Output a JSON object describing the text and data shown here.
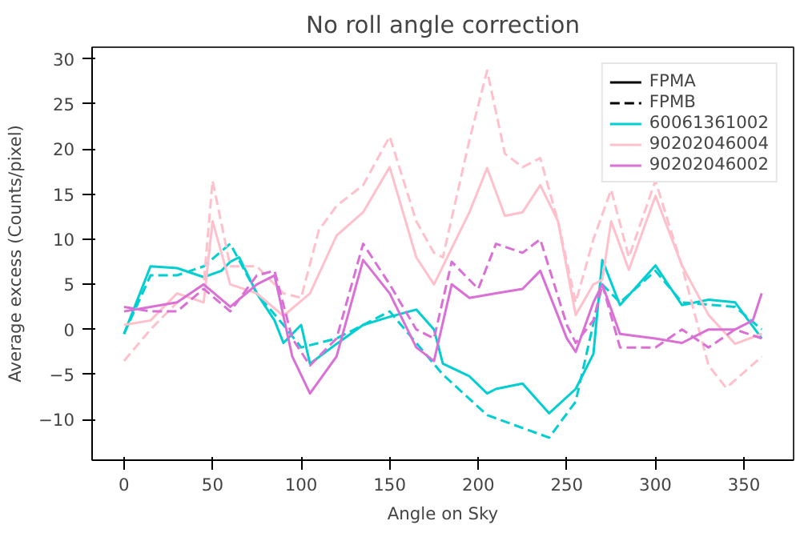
{
  "chart_data": {
    "type": "line",
    "title": "No roll angle correction",
    "xlabel": "Angle on Sky",
    "ylabel": "Average excess (Counts/pixel)",
    "xlim": [
      -18,
      378
    ],
    "ylim": [
      -14.5,
      31.3
    ],
    "xticks": [
      0,
      50,
      100,
      150,
      200,
      250,
      300,
      350
    ],
    "yticks": [
      -10,
      -5,
      0,
      5,
      10,
      15,
      20,
      25,
      30
    ],
    "grid": false,
    "legend": "top right",
    "marker": "none",
    "series": [
      {
        "name": "FPMA",
        "color": "#000000",
        "line_style": "solid"
      },
      {
        "name": "FPMB",
        "color": "#000000",
        "line_style": "dashed"
      },
      {
        "name": "60061361002",
        "color": "#00ced1",
        "line_style": "solid",
        "x": [
          0,
          15,
          30,
          45,
          55,
          60,
          65,
          75,
          85,
          90,
          100,
          105,
          120,
          135,
          150,
          165,
          175,
          180,
          195,
          205,
          210,
          225,
          240,
          255,
          265,
          270,
          280,
          300,
          315,
          330,
          345,
          360
        ],
        "values": [
          -0.5,
          7,
          6.8,
          5.8,
          6.5,
          7.5,
          8,
          4,
          1,
          -1.5,
          0.5,
          -3.8,
          -1.6,
          0.5,
          1.4,
          2.2,
          0,
          -3.8,
          -5.2,
          -7.1,
          -6.6,
          -6,
          -9.3,
          -6.6,
          -2.7,
          7.7,
          2.7,
          7.1,
          2.7,
          3.3,
          3,
          -1
        ]
      },
      {
        "color": "#00ced1",
        "line_style": "dashed",
        "x": [
          0,
          15,
          30,
          45,
          60,
          75,
          90,
          100,
          120,
          150,
          180,
          205,
          240,
          255,
          270,
          280,
          300,
          315,
          345,
          360
        ],
        "values": [
          -0.5,
          6,
          6,
          7,
          9.5,
          4,
          0.5,
          -2,
          -1,
          2,
          -5,
          -9.5,
          -12,
          -8,
          5,
          3,
          6.5,
          3,
          2.5,
          0
        ]
      },
      {
        "name": "90202046004",
        "color": "#ffc0cb",
        "line_style": "solid",
        "x": [
          0,
          15,
          30,
          45,
          50,
          60,
          75,
          90,
          105,
          120,
          135,
          150,
          165,
          175,
          195,
          205,
          215,
          225,
          235,
          245,
          255,
          265,
          270,
          275,
          285,
          300,
          315,
          330,
          345,
          360
        ],
        "values": [
          0.5,
          1,
          4,
          3,
          12,
          5,
          4,
          1.5,
          4,
          10.4,
          13,
          18,
          8,
          5,
          13,
          17.9,
          12.6,
          13,
          16,
          12,
          1.6,
          5,
          5.5,
          12,
          6.6,
          14.8,
          7.1,
          1.6,
          -1.6,
          -0.5
        ]
      },
      {
        "color": "#ffc0cb",
        "line_style": "dashed",
        "x": [
          0,
          15,
          30,
          45,
          50,
          60,
          75,
          90,
          100,
          110,
          120,
          135,
          150,
          165,
          175,
          180,
          195,
          205,
          215,
          225,
          235,
          245,
          255,
          265,
          275,
          285,
          300,
          315,
          330,
          340,
          360
        ],
        "values": [
          -3.5,
          0,
          3,
          5,
          16.5,
          7,
          7,
          4,
          3.5,
          11,
          13.7,
          16,
          21.4,
          12,
          8.5,
          8,
          21,
          28.7,
          19.5,
          18,
          19,
          12,
          3,
          10,
          15.5,
          8,
          16.5,
          7,
          -4,
          -6.5,
          -3
        ]
      },
      {
        "name": "90202046002",
        "color": "#da70d6",
        "line_style": "solid",
        "x": [
          0,
          15,
          30,
          45,
          60,
          75,
          85,
          95,
          105,
          120,
          135,
          150,
          165,
          175,
          185,
          195,
          210,
          225,
          235,
          250,
          255,
          265,
          270,
          280,
          300,
          315,
          330,
          345,
          355,
          360
        ],
        "values": [
          2,
          2.5,
          3,
          5,
          2.5,
          5,
          6,
          -3,
          -7.1,
          -3,
          7.7,
          4,
          -2,
          -3.5,
          5,
          3.5,
          4,
          4.5,
          6.5,
          -1,
          -2.5,
          3,
          5,
          -0.5,
          -1,
          -1.5,
          0,
          0,
          1,
          4
        ]
      },
      {
        "color": "#da70d6",
        "line_style": "dashed",
        "x": [
          0,
          15,
          30,
          45,
          60,
          75,
          85,
          95,
          105,
          120,
          135,
          150,
          165,
          175,
          185,
          200,
          210,
          225,
          235,
          250,
          255,
          265,
          270,
          280,
          300,
          315,
          330,
          345,
          360
        ],
        "values": [
          2.5,
          2,
          2,
          4.5,
          2,
          6,
          6.5,
          -1,
          -4,
          -1,
          9.5,
          5,
          0,
          -1,
          7.5,
          4.5,
          9.5,
          8.5,
          10,
          0.5,
          -1.5,
          1,
          5,
          -2,
          -2,
          0,
          -2,
          0,
          -1
        ]
      }
    ]
  }
}
